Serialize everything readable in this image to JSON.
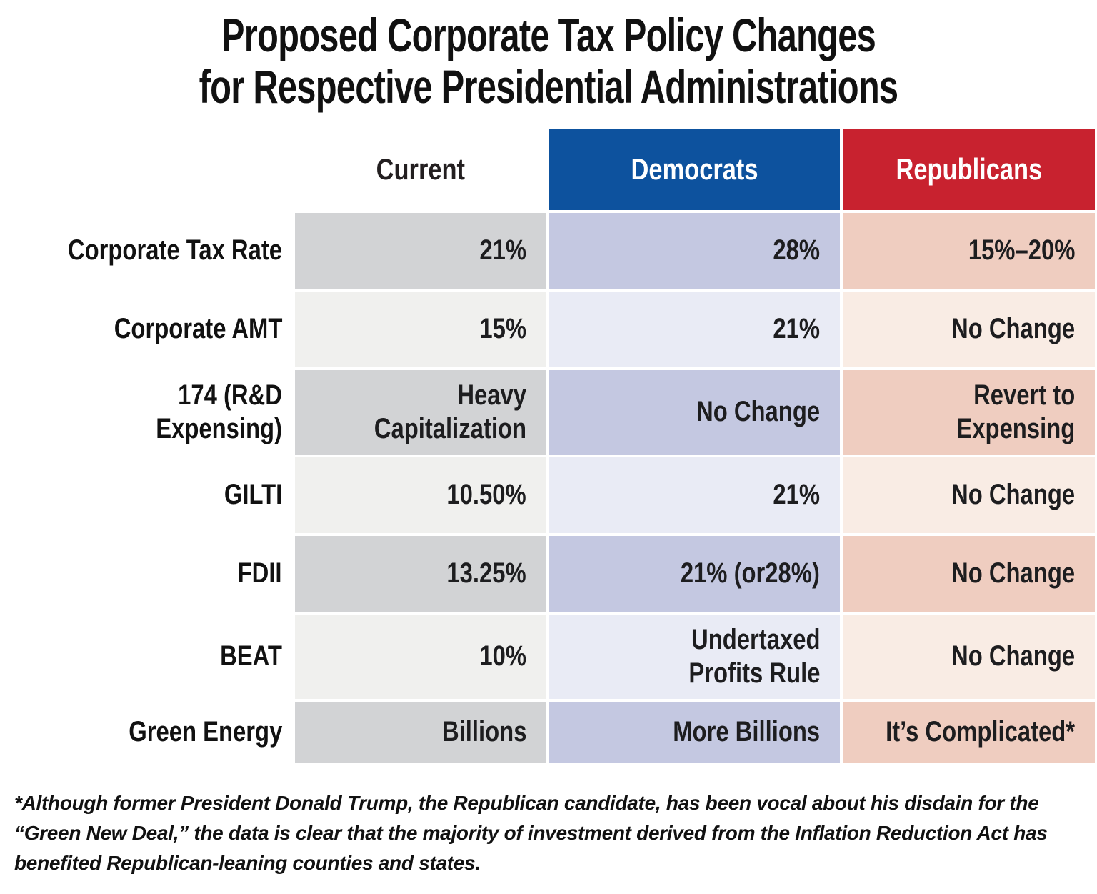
{
  "title": {
    "line1": "Proposed Corporate Tax Policy Changes",
    "line2": "for Respective Presidential Administrations"
  },
  "columns": [
    {
      "key": "current",
      "label": "Current",
      "header_bg": "#ffffff",
      "header_text": "#231f20"
    },
    {
      "key": "democrats",
      "label": "Democrats",
      "header_bg": "#0d529e",
      "header_text": "#ffffff"
    },
    {
      "key": "republicans",
      "label": "Republicans",
      "header_bg": "#c8222f",
      "header_text": "#ffffff"
    }
  ],
  "rows": [
    {
      "label": "Corporate Tax Rate",
      "current": "21%",
      "democrats": "28%",
      "republicans": "15%–20%"
    },
    {
      "label": "Corporate AMT",
      "current": "15%",
      "democrats": "21%",
      "republicans": "No Change"
    },
    {
      "label": "174 (R&D Expensing)",
      "current": "Heavy\nCapitalization",
      "democrats": "No Change",
      "republicans": "Revert to\nExpensing"
    },
    {
      "label": "GILTI",
      "current": "10.50%",
      "democrats": "21%",
      "republicans": "No Change"
    },
    {
      "label": "FDII",
      "current": "13.25%",
      "democrats": "21% (or28%)",
      "republicans": "No Change"
    },
    {
      "label": "BEAT",
      "current": "10%",
      "democrats": "Undertaxed\nProfits Rule",
      "republicans": "No Change"
    },
    {
      "label": "Green Energy",
      "current": "Billions",
      "democrats": "More Billions",
      "republicans": "It’s Complicated*"
    }
  ],
  "footnote": "*Although former President Donald Trump, the Republican candidate, has been vocal about his disdain for the “Green New Deal,” the data is clear that the majority of investment derived from the Inflation Reduction Act has benefited Republican-leaning counties and states.",
  "colors": {
    "democrat_header": "#0d529e",
    "republican_header": "#c8222f",
    "current_dark": "#d2d3d5",
    "current_light": "#f0f0ee",
    "democrat_dark": "#c4c8e1",
    "democrat_light": "#e9ebf5",
    "republican_dark": "#efcdc0",
    "republican_light": "#f9ece4",
    "text": "#1d1d1f"
  },
  "chart_data": {
    "type": "table",
    "title": "Proposed Corporate Tax Policy Changes for Respective Presidential Administrations",
    "column_headers": [
      "",
      "Current",
      "Democrats",
      "Republicans"
    ],
    "rows": [
      [
        "Corporate Tax Rate",
        "21%",
        "28%",
        "15%–20%"
      ],
      [
        "Corporate AMT",
        "15%",
        "21%",
        "No Change"
      ],
      [
        "174 (R&D Expensing)",
        "Heavy Capitalization",
        "No Change",
        "Revert to Expensing"
      ],
      [
        "GILTI",
        "10.50%",
        "21%",
        "No Change"
      ],
      [
        "FDII",
        "13.25%",
        "21% (or28%)",
        "No Change"
      ],
      [
        "BEAT",
        "10%",
        "Undertaxed Profits Rule",
        "No Change"
      ],
      [
        "Green Energy",
        "Billions",
        "More Billions",
        "It’s Complicated*"
      ]
    ],
    "footnote": "*Although former President Donald Trump, the Republican candidate, has been vocal about his disdain for the “Green New Deal,” the data is clear that the majority of investment derived from the Inflation Reduction Act has benefited Republican-leaning counties and states.",
    "legend_position": "none",
    "grid": false
  }
}
